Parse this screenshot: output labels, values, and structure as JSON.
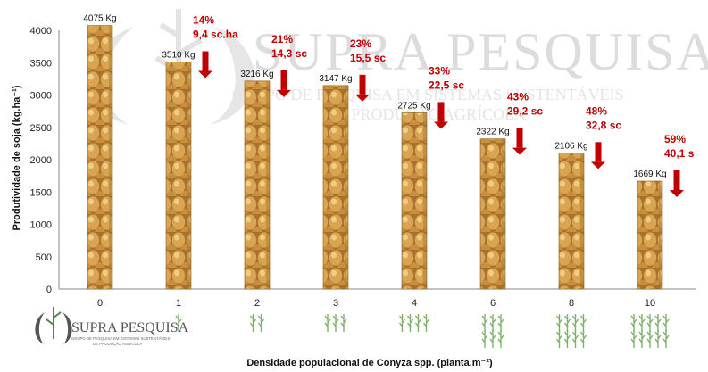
{
  "watermark": {
    "title": "SUPRA PESQUISA",
    "subtitle_1": "GRUPO DE PESQUISA EM SISTEMAS SUSTENTÁVEIS",
    "subtitle_2": "DE PRODUÇÃO AGRÍCOLA"
  },
  "logo": {
    "title": "SUPRA PESQUISA",
    "subtitle_1": "GRUPO DE PESQUISA EM SISTEMAS SUSTENTÁVEIS",
    "subtitle_2": "DE PRODUÇÃO AGRÍCOLA"
  },
  "colors": {
    "annotation": "#c00000",
    "bar_fill": "#d6a24e",
    "bar_shade": "#9c6a24",
    "weed": "#7fb06a"
  },
  "chart_data": {
    "type": "bar",
    "xlabel": "Densidade populacional  de Conyza spp. (planta.m⁻²)",
    "ylabel": "Produtividade de soja (kg.ha⁻¹)",
    "ylim": [
      0,
      4000
    ],
    "yticks": [
      "0",
      "500",
      "1000",
      "1500",
      "2000",
      "2500",
      "3000",
      "3500",
      "4000"
    ],
    "grid": false,
    "categories": [
      "0",
      "1",
      "2",
      "3",
      "4",
      "6",
      "8",
      "10"
    ],
    "values": [
      4075,
      3510,
      3216,
      3147,
      2725,
      2322,
      2106,
      1669
    ],
    "value_labels": [
      "4075 Kg",
      "3510 Kg",
      "3216 Kg",
      "3147 Kg",
      "2725 Kg",
      "2322 Kg",
      "2106 Kg",
      "1669 Kg"
    ],
    "annotations": [
      {
        "category": "1",
        "loss_percent": "14%",
        "loss_sacks": "9,4 sc.ha"
      },
      {
        "category": "2",
        "loss_percent": "21%",
        "loss_sacks": "14,3 sc"
      },
      {
        "category": "3",
        "loss_percent": "23%",
        "loss_sacks": "15,5 sc"
      },
      {
        "category": "4",
        "loss_percent": "33%",
        "loss_sacks": "22,5 sc"
      },
      {
        "category": "6",
        "loss_percent": "43%",
        "loss_sacks": "29,2 sc"
      },
      {
        "category": "8",
        "loss_percent": "48%",
        "loss_sacks": "32,8 sc"
      },
      {
        "category": "10",
        "loss_percent": "59%",
        "loss_sacks": "40,1 s"
      }
    ],
    "weed_icons_per_category": [
      0,
      1,
      2,
      3,
      4,
      6,
      8,
      10
    ]
  }
}
